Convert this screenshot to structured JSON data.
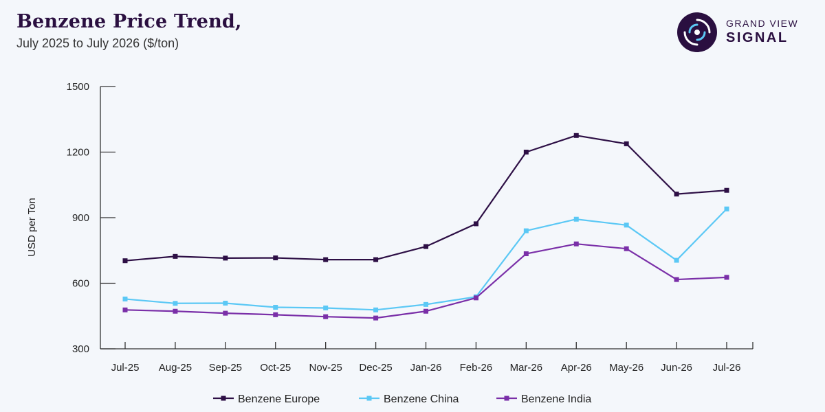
{
  "header": {
    "title": "Benzene Price Trend,",
    "subtitle": "July 2025 to July 2026 ($/ton)"
  },
  "logo": {
    "line1": "GRAND VIEW",
    "line2": "SIGNAL",
    "icon": "signal-swirl-icon"
  },
  "chart_data": {
    "type": "line",
    "title": "Benzene Price Trend,",
    "subtitle": "July 2025 to July 2026 ($/ton)",
    "xlabel": "",
    "ylabel": "USD per Ton",
    "ylim": [
      300,
      1500
    ],
    "yticks": [
      300,
      600,
      900,
      1200,
      1500
    ],
    "grid": false,
    "legend_position": "bottom",
    "categories": [
      "Jul-25",
      "Aug-25",
      "Sep-25",
      "Oct-25",
      "Nov-25",
      "Dec-25",
      "Jan-26",
      "Feb-26",
      "Mar-26",
      "Apr-26",
      "May-26",
      "Jun-26",
      "Jul-26"
    ],
    "series": [
      {
        "name": "Benzene Europe",
        "color": "#2d0f45",
        "values": [
          703,
          723,
          715,
          716,
          708,
          708,
          768,
          872,
          1200,
          1276,
          1238,
          1008,
          1025
        ]
      },
      {
        "name": "Benzene China",
        "color": "#5bc8f5",
        "values": [
          528,
          508,
          509,
          490,
          487,
          478,
          503,
          538,
          840,
          893,
          866,
          705,
          940
        ]
      },
      {
        "name": "Benzene India",
        "color": "#7a2fa8",
        "values": [
          478,
          472,
          463,
          456,
          447,
          441,
          472,
          533,
          735,
          780,
          758,
          617,
          627
        ]
      }
    ]
  }
}
